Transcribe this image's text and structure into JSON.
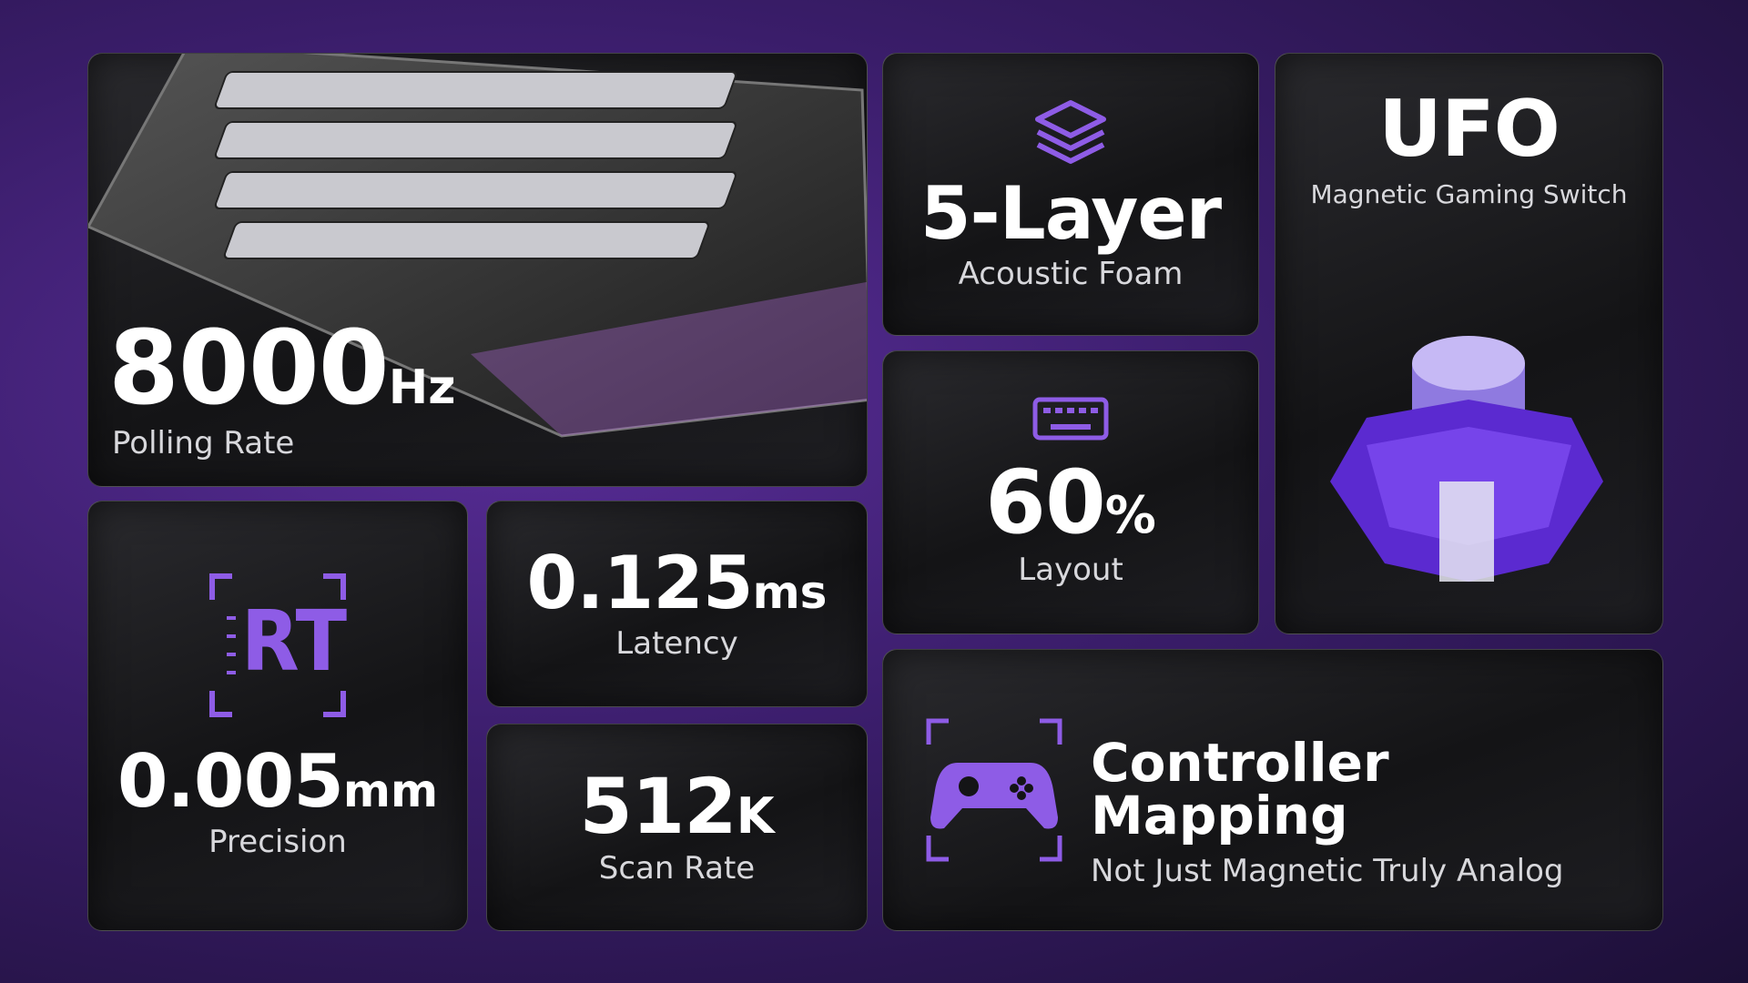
{
  "cards": {
    "polling": {
      "value": "8000",
      "unit": "Hz",
      "label": "Polling Rate"
    },
    "foam": {
      "value": "5-Layer",
      "label": "Acoustic Foam"
    },
    "switch": {
      "title": "UFO",
      "label": "Magnetic Gaming Switch"
    },
    "layout": {
      "value": "60",
      "unit": "%",
      "label": "Layout"
    },
    "precision": {
      "icon": "RT",
      "value": "0.005",
      "unit": "mm",
      "label": "Precision"
    },
    "latency": {
      "value": "0.125",
      "unit": "ms",
      "label": "Latency"
    },
    "scan": {
      "value": "512",
      "unit": "K",
      "label": "Scan Rate"
    },
    "controller": {
      "title": "Controller Mapping",
      "label": "Not Just Magnetic Truly Analog"
    }
  }
}
